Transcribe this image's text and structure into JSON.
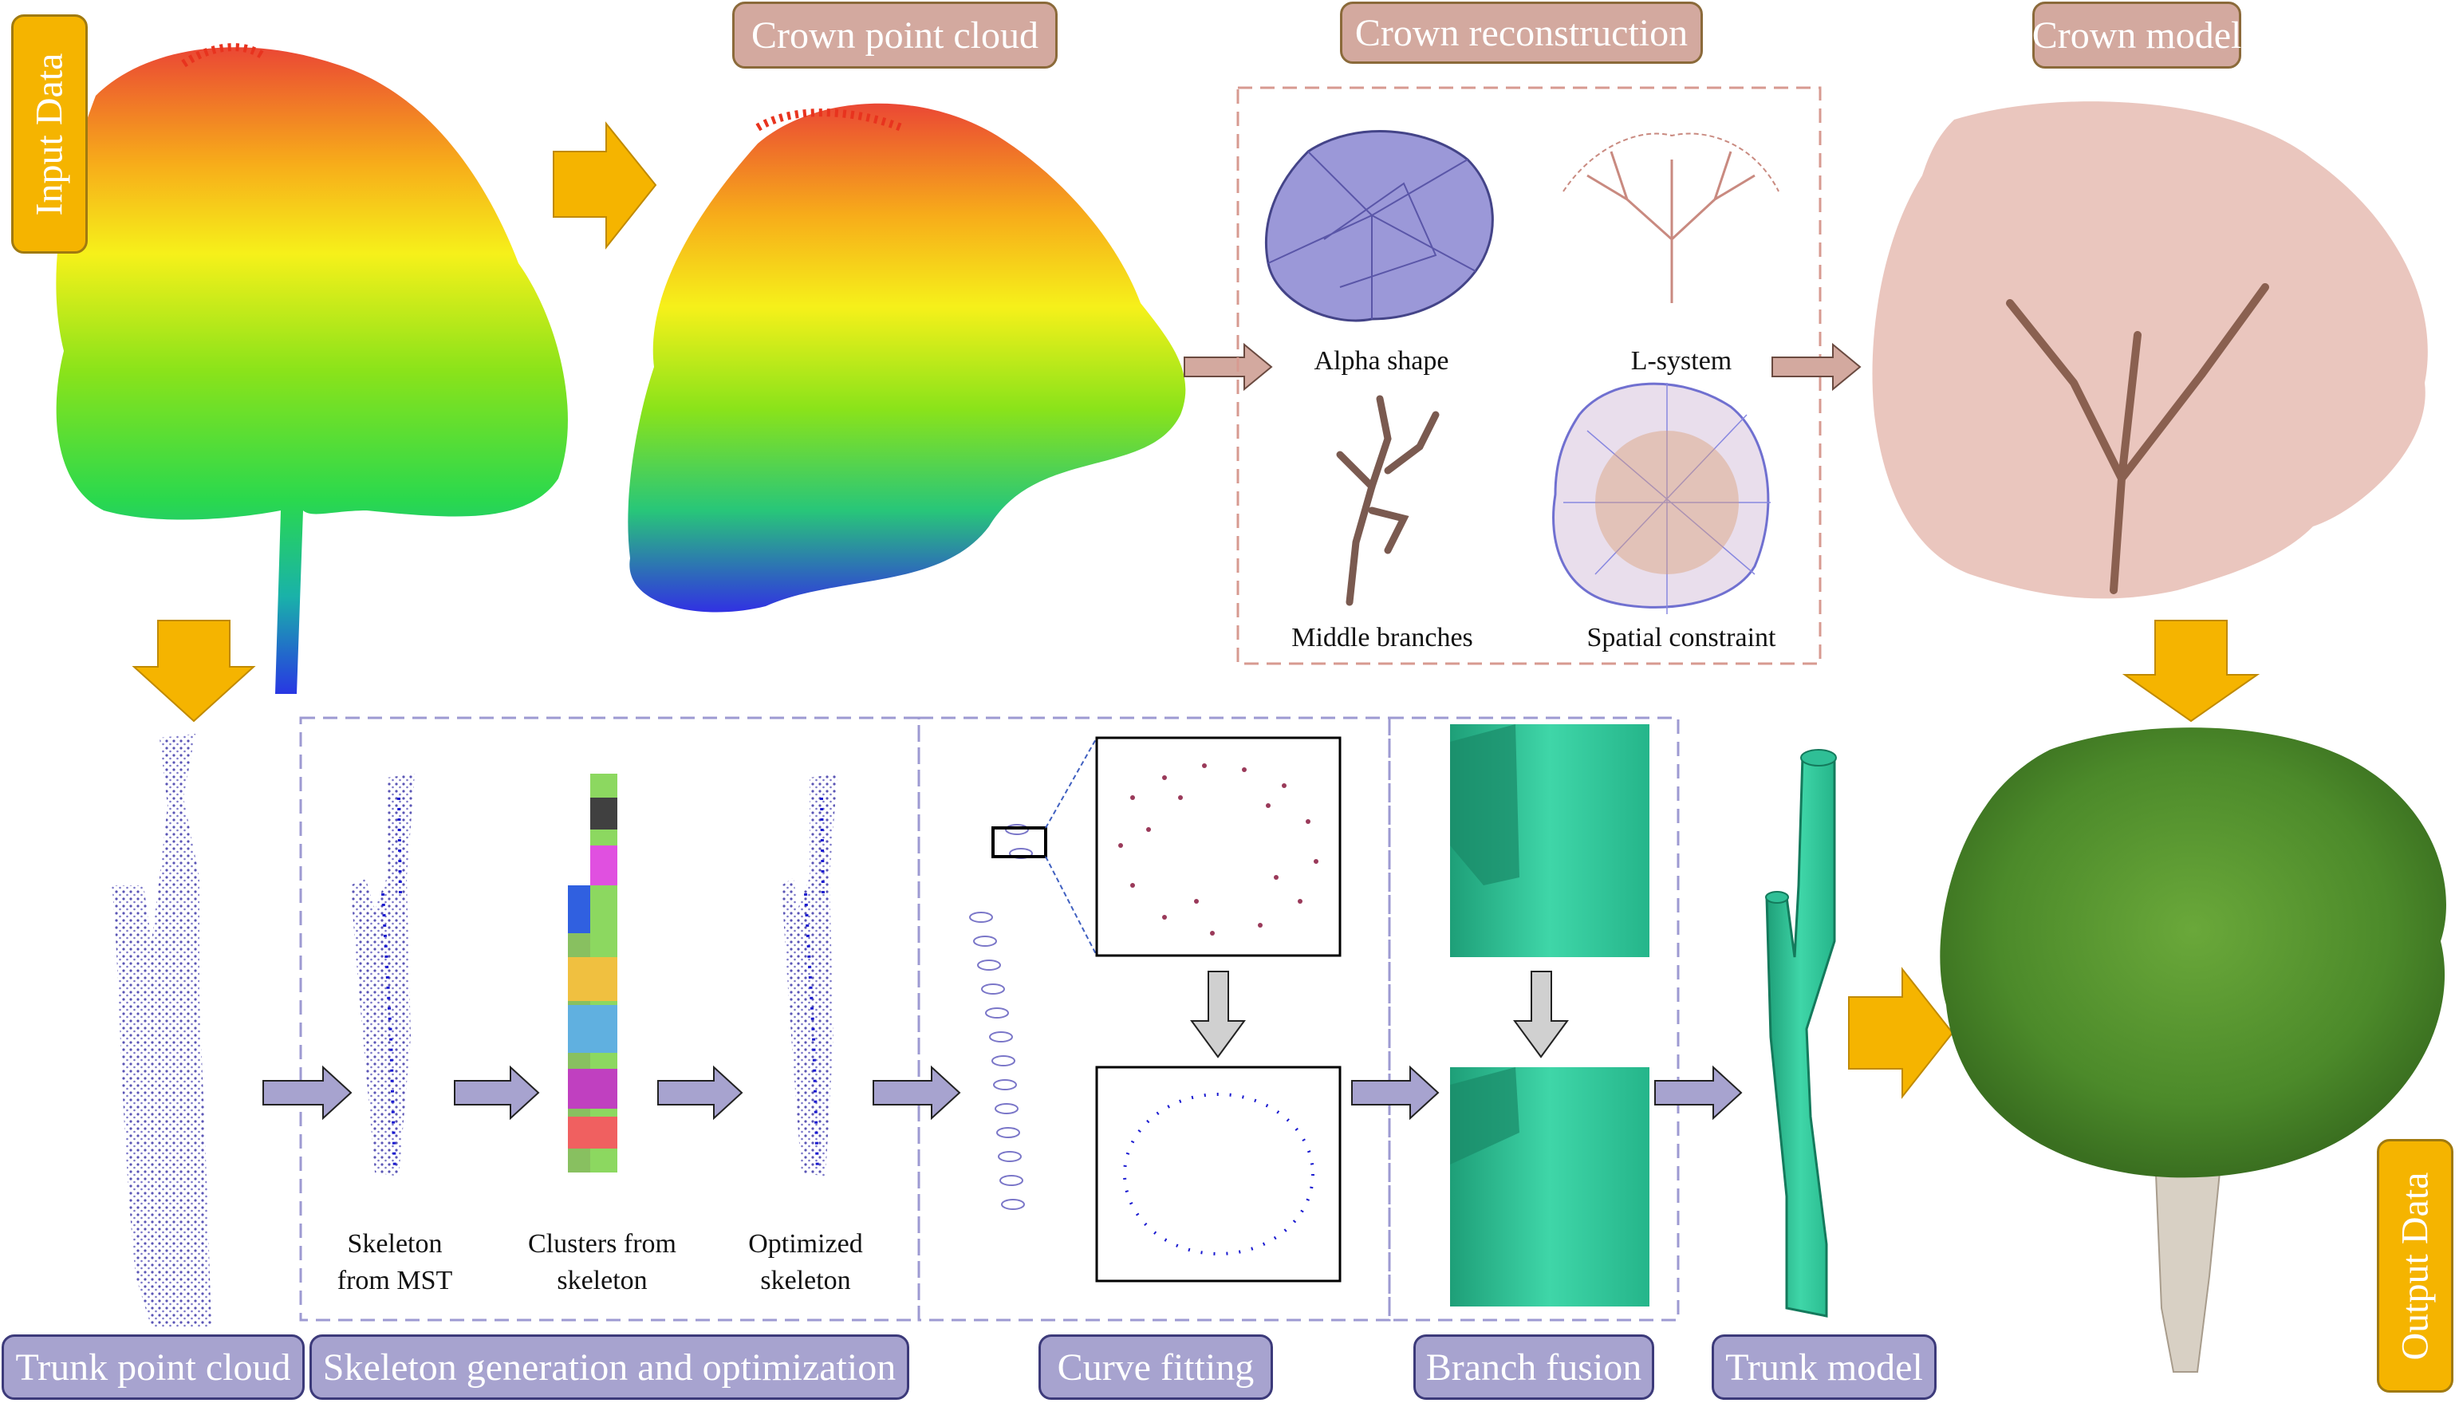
{
  "tags": {
    "input_data": "Input Data",
    "output_data": "Output Data",
    "crown_point_cloud": "Crown point cloud",
    "crown_reconstruction": "Crown reconstruction",
    "crown_model": "Crown model",
    "trunk_point_cloud": "Trunk point cloud",
    "skeleton_generation": "Skeleton generation and optimization",
    "curve_fitting": "Curve fitting",
    "branch_fusion": "Branch fusion",
    "trunk_model": "Trunk model"
  },
  "crown_panel": {
    "alpha_shape": "Alpha shape",
    "l_system": "L-system",
    "middle_branches": "Middle branches",
    "spatial_constraint": "Spatial constraint"
  },
  "skeleton_steps": {
    "mst_line1": "Skeleton",
    "mst_line2": "from MST",
    "clusters_line1": "Clusters from",
    "clusters_line2": "skeleton",
    "optimized_line1": "Optimized",
    "optimized_line2": "skeleton"
  },
  "colors": {
    "crown_tag": "#d3a99f",
    "trunk_tag": "#a7a3cf",
    "data_tag": "#f5b400",
    "big_arrow": "#f5b400",
    "trunk_arrow": "#a7a3cf",
    "crown_arrow": "#d3a99f",
    "mesh": "#2fbf96",
    "gray_arrow": "#d0d0d0"
  }
}
